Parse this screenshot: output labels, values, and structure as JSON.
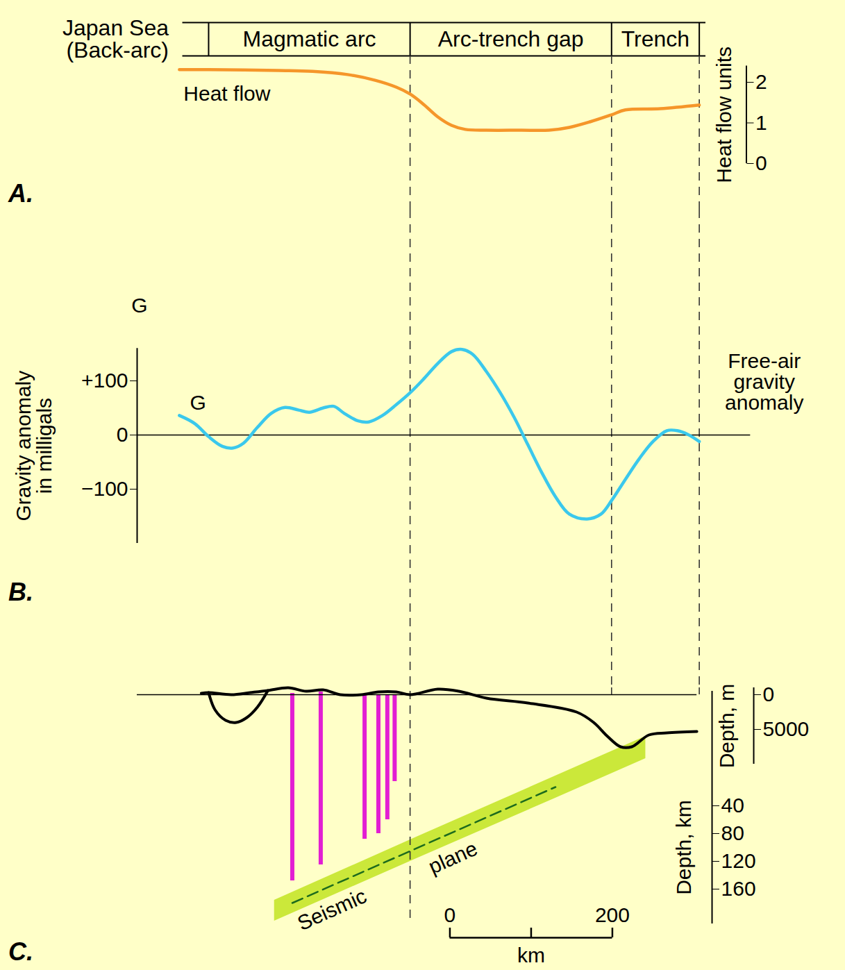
{
  "zones": {
    "xlim": [
      56,
      700
    ],
    "items": [
      {
        "label": "Japan Sea (Back-arc)",
        "x": [
          0,
          88
        ]
      },
      {
        "label": "Magmatic arc",
        "x": [
          88,
          336
        ]
      },
      {
        "label": "Arc-trench gap",
        "x": [
          336,
          584
        ]
      },
      {
        "label": "Trench",
        "x": [
          584,
          692
        ]
      }
    ]
  },
  "chart_data": [
    {
      "type": "line",
      "panel": "A.",
      "xlim": [
        0,
        750
      ],
      "y2lim": [
        0,
        2.4
      ],
      "y2ticks": [
        0,
        1,
        2
      ],
      "y2label": "Heat flow units",
      "tick_labels": "y",
      "series": [
        {
          "name": "Heat flow",
          "axis": "y2",
          "color": "#f5962a",
          "x": [
            52,
            88,
            174,
            216,
            259,
            293,
            319,
            336,
            353,
            370,
            387,
            404,
            430,
            473,
            507,
            532,
            558,
            584,
            601,
            644,
            692
          ],
          "values": [
            2.31,
            2.31,
            2.29,
            2.27,
            2.19,
            2.05,
            1.88,
            1.71,
            1.45,
            1.15,
            0.94,
            0.84,
            0.82,
            0.82,
            0.82,
            0.89,
            1.03,
            1.2,
            1.32,
            1.35,
            1.44
          ]
        }
      ]
    },
    {
      "type": "line",
      "panel": "B.",
      "xlim": [
        0,
        755
      ],
      "ylim": [
        -200,
        160
      ],
      "yticks": [
        {
          "value": 100,
          "label": "+100"
        },
        0,
        {
          "value": -100,
          "label": "−100"
        }
      ],
      "ylabel": "Gravity anomaly in milligals",
      "tick_labels": "y",
      "series": [
        {
          "color": "#3ac8ec",
          "x": [
            52,
            71,
            88,
            105,
            118,
            131,
            148,
            165,
            182,
            199,
            212,
            229,
            242,
            255,
            272,
            285,
            302,
            319,
            336,
            353,
            370,
            387,
            400,
            413,
            430,
            447,
            464,
            481,
            498,
            515,
            532,
            554,
            571,
            584,
            601,
            618,
            635,
            652,
            665,
            678,
            692
          ],
          "values": [
            36,
            21,
            -3,
            -21,
            -24,
            -15,
            14,
            40,
            51,
            46,
            42,
            50,
            53,
            40,
            26,
            24,
            36,
            56,
            78,
            104,
            132,
            154,
            158,
            149,
            117,
            78,
            33,
            -18,
            -69,
            -114,
            -146,
            -155,
            -146,
            -121,
            -82,
            -44,
            -12,
            8,
            8,
            1,
            -12
          ]
        }
      ],
      "annotations": [
        {
          "text": "G",
          "x": 3,
          "y": 238
        },
        {
          "text": "G",
          "x": 75,
          "y": 59
        },
        {
          "text": "Free-air gravity anomaly",
          "x": 772,
          "y": 97
        }
      ]
    },
    {
      "type": "cross_section",
      "panel": "C.",
      "xlim": [
        0,
        759
      ],
      "ylim": [
        -125,
        210
      ],
      "yticks": [
        40,
        80,
        120,
        160
      ],
      "ylabel": "Depth, km",
      "y2lim": [
        -1000,
        10000
      ],
      "y2ticks": [
        0,
        5000
      ],
      "y2label": "Depth, m",
      "tick_labels": "y",
      "series": [
        {
          "axis": "y2",
          "color": "#000000",
          "x": [
            79,
            88,
            116,
            139,
            161,
            186,
            208,
            229,
            250,
            276,
            297,
            319,
            336,
            370,
            396,
            430,
            481,
            541,
            562,
            579,
            595,
            609,
            630,
            652,
            689
          ],
          "values": [
            -200,
            -300,
            0,
            -300,
            -600,
            -1000,
            -500,
            -700,
            0,
            0,
            -400,
            -400,
            0,
            -800,
            -500,
            500,
            1200,
            2500,
            4000,
            6000,
            7500,
            7500,
            5800,
            5500,
            5300
          ]
        },
        {
          "axis": "y2",
          "color": "#000000",
          "x": [
            88,
            96,
            109,
            122,
            135,
            148,
            161
          ],
          "values": [
            -300,
            2200,
            3700,
            4000,
            3300,
            1800,
            -600
          ]
        }
      ],
      "seismic_plane": {
        "color": "#cbe83a",
        "x": [
          169,
          344,
          515,
          626
        ],
        "top": [
          176,
          85,
          -3,
          -60
        ],
        "bottom": [
          206,
          116,
          29,
          -28
        ]
      },
      "hypocenters": {
        "color": "#1d6b1d",
        "line_style": "dashed",
        "x": [
          191,
          515
        ],
        "values": [
          180,
          13
        ]
      },
      "conduits": {
        "color": "#e21ed3",
        "x": [
          191,
          226,
          280,
          297,
          308,
          317
        ],
        "top": [
          -122,
          -124,
          -120,
          -120,
          -119,
          -119
        ],
        "bottom": [
          148,
          125,
          88,
          80,
          60,
          5
        ]
      },
      "annotations": [
        {
          "text": "Seismic",
          "x": 240,
          "y": 190
        },
        {
          "text": "plane",
          "x": 389,
          "y": 115
        }
      ],
      "scale_bar": {
        "x": 385,
        "ticks": [
          0,
          200
        ],
        "label": "km"
      }
    }
  ]
}
